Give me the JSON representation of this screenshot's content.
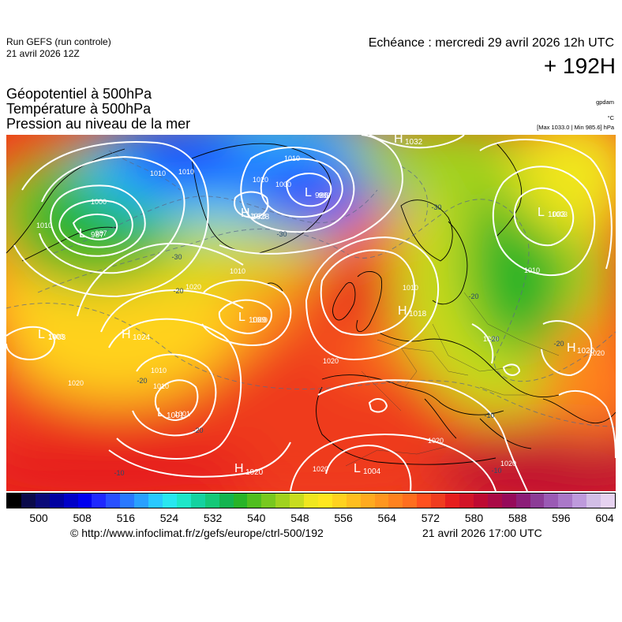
{
  "header": {
    "run_name": "Run GEFS (run controle)",
    "run_date": "21 avril 2026 12Z",
    "valid_time": "Echéance : mercredi 29 avril 2026 12h UTC",
    "lead_time": "+ 192H"
  },
  "parameters": [
    "Géopotentiel à 500hPa",
    "Température à 500hPa",
    "Pression au niveau de la mer"
  ],
  "units": {
    "geopotential": "gpdam",
    "temperature": "°C",
    "pressure": "[Max 1033.0 | Min 985.6] hPa"
  },
  "isobar_labels": [
    "1010",
    "1000",
    "987",
    "1010",
    "1020",
    "1028",
    "1010",
    "1000",
    "986",
    "1010",
    "1010",
    "1003",
    "1010",
    "1010",
    "1009",
    "1020",
    "1003",
    "1010",
    "1020",
    "1020",
    "1001",
    "1010",
    "1020",
    "1020",
    "1020",
    "1020",
    "1020"
  ],
  "isotherm_labels": [
    "-30",
    "-30",
    "-30",
    "-20",
    "-20",
    "-20",
    "-20",
    "-20",
    "-10",
    "-10",
    "-10",
    "-20"
  ],
  "pressure_centers": [
    {
      "type": "L",
      "value": "987"
    },
    {
      "type": "H",
      "value": "1028"
    },
    {
      "type": "L",
      "value": "986"
    },
    {
      "type": "H",
      "value": "1032"
    },
    {
      "type": "L",
      "value": "1003"
    },
    {
      "type": "L",
      "value": "1003"
    },
    {
      "type": "H",
      "value": "1024"
    },
    {
      "type": "L",
      "value": "1009"
    },
    {
      "type": "H",
      "value": "1018"
    },
    {
      "type": "L",
      "value": "1001"
    },
    {
      "type": "H",
      "value": "1020"
    },
    {
      "type": "L",
      "value": "1004"
    },
    {
      "type": "H",
      "value": "1020"
    }
  ],
  "colorbar": {
    "tick_labels": [
      "500",
      "508",
      "516",
      "524",
      "532",
      "540",
      "548",
      "556",
      "564",
      "572",
      "580",
      "588",
      "596",
      "604"
    ],
    "colors": [
      "#000000",
      "#0a0a4a",
      "#0a0a78",
      "#0000a0",
      "#0000c8",
      "#0000f0",
      "#1e28ff",
      "#2850ff",
      "#2878ff",
      "#28a0ff",
      "#28c8ff",
      "#28e6f0",
      "#1ee6c8",
      "#14d2a0",
      "#14c878",
      "#14b450",
      "#28b428",
      "#50be1e",
      "#78c81e",
      "#a0d21e",
      "#c8dc1e",
      "#f0e61e",
      "#ffe61e",
      "#ffd21e",
      "#ffbe1e",
      "#ffaa1e",
      "#ff961e",
      "#ff821e",
      "#ff6e1e",
      "#ff501e",
      "#f03c1e",
      "#e61e1e",
      "#d21428",
      "#be0a32",
      "#aa0a46",
      "#960a5a",
      "#8c1e78",
      "#8c3c96",
      "#9a5ab4",
      "#aa78c8",
      "#be9adc",
      "#d2bee6",
      "#e6d2f0"
    ]
  },
  "footer": {
    "url": "© http://www.infoclimat.fr/z/gefs/europe/ctrl-500/192",
    "generated": "21 avril 2026 17:00 UTC"
  }
}
